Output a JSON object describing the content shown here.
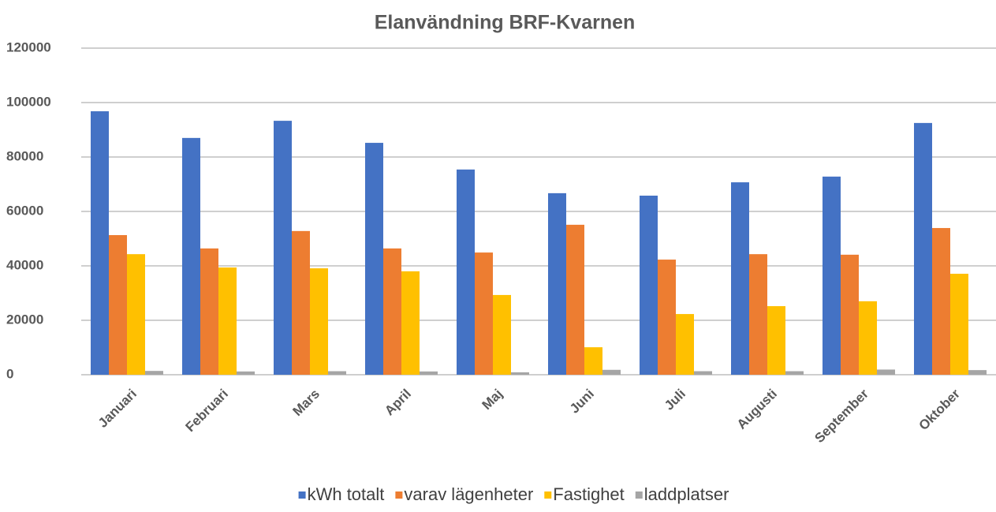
{
  "chart_data": {
    "type": "bar",
    "title": "Elanvändning BRF-Kvarnen",
    "categories": [
      "Januari",
      "Februari",
      "Mars",
      "April",
      "Maj",
      "Juni",
      "Juli",
      "Augusti",
      "September",
      "Oktober"
    ],
    "series": [
      {
        "name": "kWh totalt",
        "color": "#4472c4",
        "values": [
          96800,
          87000,
          93300,
          85200,
          75400,
          66700,
          65800,
          70700,
          72800,
          92500
        ]
      },
      {
        "name": "varav lägenheter",
        "color": "#ed7d31",
        "values": [
          51300,
          46400,
          52800,
          46400,
          44900,
          55100,
          42300,
          44300,
          44100,
          53900
        ]
      },
      {
        "name": "Fastighet",
        "color": "#ffc000",
        "values": [
          44300,
          39400,
          39100,
          38000,
          29300,
          10100,
          22300,
          25200,
          27000,
          37100
        ]
      },
      {
        "name": "laddplatser",
        "color": "#a5a5a5",
        "values": [
          1400,
          1200,
          1300,
          1200,
          900,
          1800,
          1300,
          1300,
          1900,
          1700
        ]
      }
    ],
    "ylim": [
      0,
      120000
    ],
    "yticks": [
      0,
      20000,
      40000,
      60000,
      80000,
      100000,
      120000
    ],
    "grid": true,
    "legend": "bottom"
  }
}
